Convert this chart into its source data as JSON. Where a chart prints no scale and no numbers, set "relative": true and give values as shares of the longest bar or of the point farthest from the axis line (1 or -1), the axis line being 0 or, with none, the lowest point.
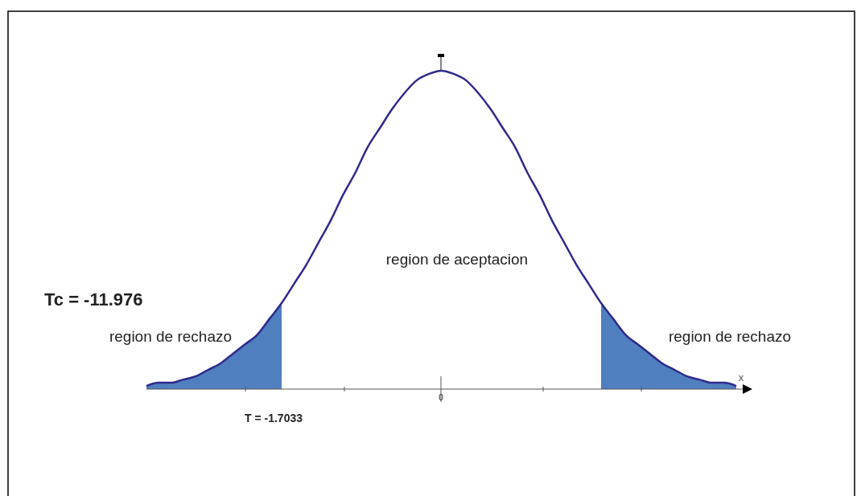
{
  "chart_data": {
    "type": "line",
    "relative": true,
    "xlabel": "x",
    "categories": [
      null,
      null,
      null,
      null,
      null,
      null,
      null,
      null,
      null,
      null,
      null,
      null,
      null,
      null,
      null,
      null,
      null,
      null,
      null,
      null,
      null,
      null,
      null,
      null,
      null,
      null,
      null,
      null,
      null,
      null,
      null,
      null,
      null,
      null,
      null,
      null,
      null,
      null,
      null,
      null,
      null,
      null,
      null,
      null,
      null,
      null,
      null,
      null,
      null
    ],
    "series": [
      {
        "type": "area",
        "color": "#4f7fbf",
        "values": [
          0.01,
          0.02,
          0.02,
          0.03,
          0.04,
          0.06,
          0.08,
          0.11,
          0.14,
          0.17,
          0.22,
          0.27,
          null,
          null,
          null,
          null,
          null,
          null,
          null,
          null,
          null,
          null,
          null,
          null,
          null,
          null,
          null,
          null,
          null,
          null,
          null,
          null,
          null,
          null,
          null,
          null,
          null,
          0.27,
          0.22,
          0.17,
          0.14,
          0.11,
          0.08,
          0.06,
          0.04,
          0.03,
          0.02,
          0.02,
          0.01
        ]
      },
      {
        "color": "#2e2a8c",
        "values": [
          0.01,
          0.02,
          0.02,
          0.03,
          0.04,
          0.06,
          0.08,
          0.11,
          0.14,
          0.17,
          0.22,
          0.27,
          0.33,
          0.39,
          0.46,
          0.53,
          0.61,
          0.68,
          0.76,
          0.82,
          0.88,
          0.93,
          0.97,
          0.99,
          1,
          0.99,
          0.97,
          0.93,
          0.88,
          0.82,
          0.76,
          0.68,
          0.61,
          0.53,
          0.46,
          0.39,
          0.33,
          0.27,
          0.22,
          0.17,
          0.14,
          0.11,
          0.08,
          0.06,
          0.04,
          0.03,
          0.02,
          0.02,
          0.01
        ]
      }
    ],
    "annotations": [
      "Tc = -11.976",
      "region de aceptacion",
      "region de rechazo",
      "region de rechazo",
      "T = -1.7033",
      "0"
    ]
  }
}
